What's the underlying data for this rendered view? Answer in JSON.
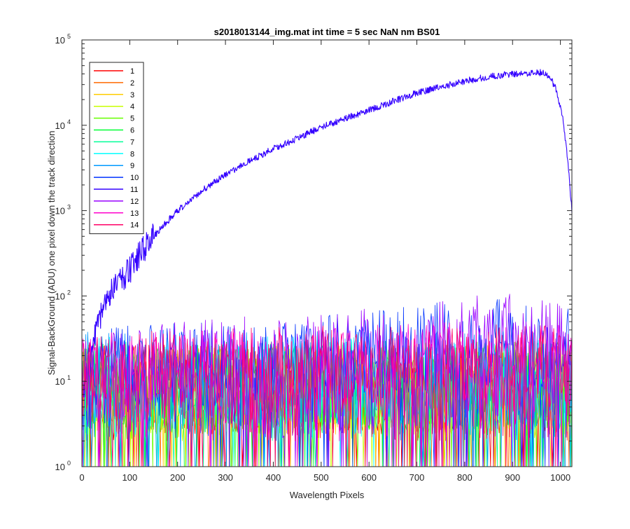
{
  "chart_data": {
    "type": "line",
    "title": "s2018013144_img.mat int time = 5 sec  NaN nm BS01",
    "xlabel": "Wavelength Pixels",
    "ylabel": "Signal-BackGround (ADU) one pixel down the track direction",
    "xlim": [
      0,
      1024
    ],
    "ylim": [
      1,
      100000
    ],
    "y_scale": "log",
    "grid": false,
    "legend_position": "top-left",
    "x_ticks": [
      0,
      100,
      200,
      300,
      400,
      500,
      600,
      700,
      800,
      900,
      1000
    ],
    "y_ticks": [
      {
        "value": 1,
        "base": "10",
        "exp": "0"
      },
      {
        "value": 10,
        "base": "10",
        "exp": "1"
      },
      {
        "value": 100,
        "base": "10",
        "exp": "2"
      },
      {
        "value": 1000,
        "base": "10",
        "exp": "3"
      },
      {
        "value": 10000,
        "base": "10",
        "exp": "4"
      },
      {
        "value": 100000,
        "base": "10",
        "exp": "5"
      }
    ],
    "series": [
      {
        "name": "1",
        "color": "#ff0000",
        "trend": {
          "x": [
            0,
            1024
          ],
          "y": [
            8,
            8
          ]
        }
      },
      {
        "name": "2",
        "color": "#ff6a00",
        "trend": {
          "x": [
            0,
            1024
          ],
          "y": [
            8,
            8
          ]
        }
      },
      {
        "name": "3",
        "color": "#ffcc00",
        "trend": {
          "x": [
            0,
            1024
          ],
          "y": [
            8,
            8
          ]
        }
      },
      {
        "name": "4",
        "color": "#c8ff00",
        "trend": {
          "x": [
            0,
            1024
          ],
          "y": [
            8,
            8
          ]
        }
      },
      {
        "name": "5",
        "color": "#66ff00",
        "trend": {
          "x": [
            0,
            1024
          ],
          "y": [
            9,
            9
          ]
        }
      },
      {
        "name": "6",
        "color": "#00ff33",
        "trend": {
          "x": [
            0,
            1024
          ],
          "y": [
            9,
            9
          ]
        }
      },
      {
        "name": "7",
        "color": "#00ff99",
        "trend": {
          "x": [
            0,
            1024
          ],
          "y": [
            9,
            9
          ]
        }
      },
      {
        "name": "8",
        "color": "#00ffff",
        "trend": {
          "x": [
            0,
            1024
          ],
          "y": [
            10,
            10
          ]
        }
      },
      {
        "name": "9",
        "color": "#0099ff",
        "trend": {
          "x": [
            0,
            1024
          ],
          "y": [
            12,
            12
          ]
        }
      },
      {
        "name": "10",
        "color": "#0033ff",
        "trend": {
          "x": [
            0,
            60,
            200,
            400,
            600,
            800,
            900,
            1024
          ],
          "y": [
            10,
            14,
            15,
            16,
            20,
            28,
            28,
            22
          ]
        }
      },
      {
        "name": "11",
        "color": "#3300ff",
        "trend": {
          "x": [
            0,
            5,
            20,
            30,
            40,
            50,
            60,
            80,
            100,
            120,
            150,
            200,
            250,
            300,
            350,
            400,
            450,
            500,
            550,
            600,
            650,
            700,
            750,
            800,
            850,
            900,
            940,
            960,
            975,
            990,
            1005,
            1015,
            1024
          ],
          "y": [
            3,
            10,
            25,
            40,
            60,
            80,
            110,
            150,
            200,
            300,
            500,
            1000,
            1700,
            2600,
            3800,
            5300,
            7000,
            9500,
            12000,
            15000,
            19000,
            24000,
            28000,
            33000,
            37000,
            40000,
            41000,
            41500,
            38000,
            28000,
            12000,
            4000,
            1000
          ]
        }
      },
      {
        "name": "12",
        "color": "#9900ff",
        "trend": {
          "x": [
            0,
            60,
            200,
            400,
            600,
            800,
            900,
            1024
          ],
          "y": [
            10,
            14,
            16,
            18,
            22,
            30,
            32,
            25
          ]
        }
      },
      {
        "name": "13",
        "color": "#ff00cc",
        "trend": {
          "x": [
            0,
            200,
            400,
            600,
            800,
            1024
          ],
          "y": [
            11,
            12,
            13,
            14,
            15,
            14
          ]
        }
      },
      {
        "name": "14",
        "color": "#ff0066",
        "trend": {
          "x": [
            0,
            200,
            400,
            600,
            800,
            1024
          ],
          "y": [
            11,
            12,
            13,
            14,
            15,
            14
          ]
        }
      }
    ]
  }
}
